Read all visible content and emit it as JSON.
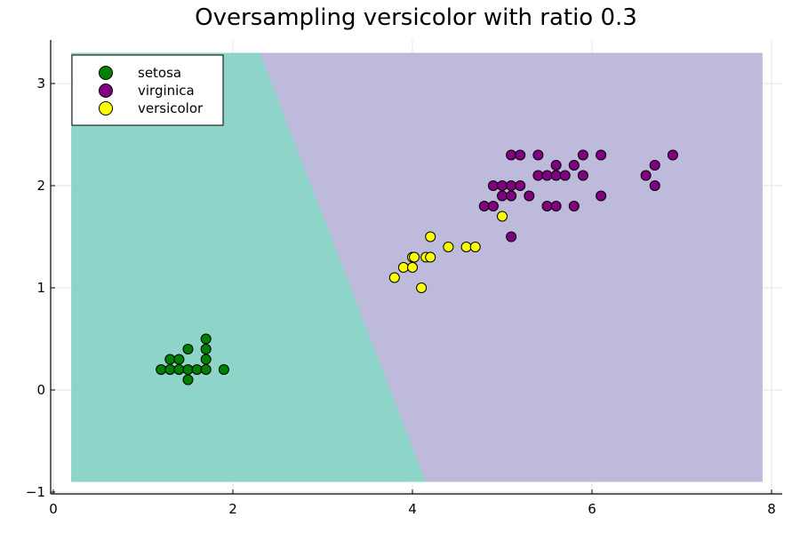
{
  "chart_data": {
    "type": "scatter",
    "title": "Oversampling versicolor with ratio 0.3",
    "xlabel": "",
    "ylabel": "",
    "xlim": [
      0,
      8
    ],
    "ylim": [
      -1,
      3.4
    ],
    "x_ticks": [
      0,
      2,
      4,
      6,
      8
    ],
    "y_ticks": [
      -1,
      0,
      1,
      2,
      3
    ],
    "grid": true,
    "legend_position": "top-left",
    "decision_regions": {
      "x_range": [
        0.2,
        7.9
      ],
      "y_range": [
        -0.9,
        3.3
      ],
      "boundary": [
        [
          2.3,
          3.3
        ],
        [
          4.15,
          -0.9
        ]
      ],
      "left_region_color": "#8fd4c8",
      "right_region_color": "#bdbadb"
    },
    "series": [
      {
        "name": "setosa",
        "color": "#008000",
        "points": [
          [
            1.2,
            0.2
          ],
          [
            1.3,
            0.2
          ],
          [
            1.3,
            0.3
          ],
          [
            1.4,
            0.2
          ],
          [
            1.4,
            0.3
          ],
          [
            1.5,
            0.2
          ],
          [
            1.5,
            0.4
          ],
          [
            1.5,
            0.1
          ],
          [
            1.6,
            0.2
          ],
          [
            1.7,
            0.2
          ],
          [
            1.7,
            0.3
          ],
          [
            1.7,
            0.4
          ],
          [
            1.7,
            0.5
          ],
          [
            1.9,
            0.2
          ]
        ]
      },
      {
        "name": "virginica",
        "color": "#800080",
        "points": [
          [
            4.8,
            1.8
          ],
          [
            4.9,
            1.8
          ],
          [
            4.9,
            2.0
          ],
          [
            5.0,
            1.9
          ],
          [
            5.0,
            2.0
          ],
          [
            5.1,
            1.5
          ],
          [
            5.1,
            1.9
          ],
          [
            5.1,
            2.0
          ],
          [
            5.1,
            2.3
          ],
          [
            5.2,
            2.0
          ],
          [
            5.2,
            2.3
          ],
          [
            5.3,
            1.9
          ],
          [
            5.4,
            2.1
          ],
          [
            5.4,
            2.3
          ],
          [
            5.5,
            1.8
          ],
          [
            5.5,
            2.1
          ],
          [
            5.6,
            1.8
          ],
          [
            5.6,
            2.1
          ],
          [
            5.6,
            2.2
          ],
          [
            5.7,
            2.1
          ],
          [
            5.8,
            1.8
          ],
          [
            5.8,
            2.2
          ],
          [
            5.9,
            2.1
          ],
          [
            5.9,
            2.3
          ],
          [
            6.1,
            1.9
          ],
          [
            6.1,
            2.3
          ],
          [
            6.6,
            2.1
          ],
          [
            6.7,
            2.0
          ],
          [
            6.7,
            2.2
          ],
          [
            6.9,
            2.3
          ]
        ]
      },
      {
        "name": "versicolor",
        "color": "#ffff00",
        "points": [
          [
            3.8,
            1.1
          ],
          [
            3.9,
            1.2
          ],
          [
            4.0,
            1.2
          ],
          [
            4.0,
            1.3
          ],
          [
            4.02,
            1.3
          ],
          [
            4.1,
            1.0
          ],
          [
            4.15,
            1.3
          ],
          [
            4.2,
            1.3
          ],
          [
            4.2,
            1.5
          ],
          [
            4.4,
            1.4
          ],
          [
            4.6,
            1.4
          ],
          [
            4.7,
            1.4
          ],
          [
            5.0,
            1.7
          ]
        ]
      }
    ]
  }
}
